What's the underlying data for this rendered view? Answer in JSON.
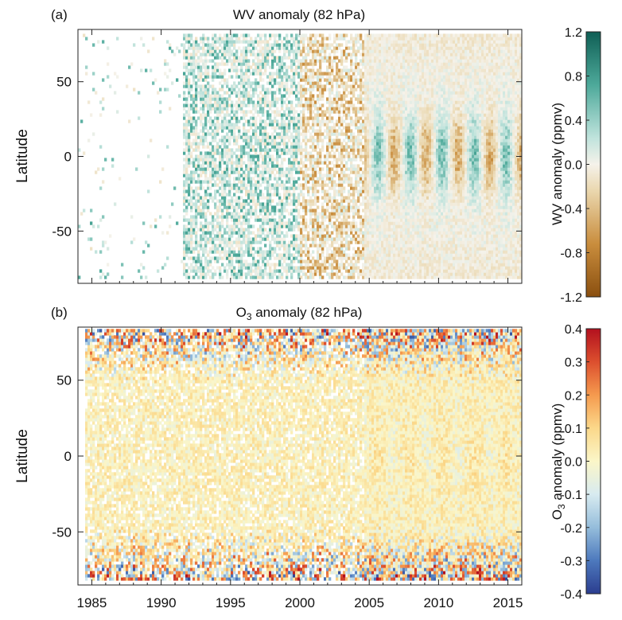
{
  "figure": {
    "panels": [
      {
        "panel_label": "(a)",
        "title": "WV anomaly (82 hPa)",
        "ylabel": "Latitude",
        "colorbar_label": "WV anomaly (ppmv)"
      },
      {
        "panel_label": "(b)",
        "title_main": "O",
        "title_sub": "3",
        "title_rest": " anomaly (82 hPa)",
        "ylabel": "Latitude",
        "colorbar_label_main": "O",
        "colorbar_label_sub": "3",
        "colorbar_label_rest": " anomaly (ppmv)"
      }
    ]
  },
  "chart_data": [
    {
      "type": "heatmap",
      "title": "WV anomaly (82 hPa)",
      "xlabel": "",
      "ylabel": "Latitude",
      "xlim": [
        1984,
        2016
      ],
      "ylim": [
        -85,
        85
      ],
      "xticks": [
        1985,
        1990,
        1995,
        2000,
        2005,
        2010,
        2015
      ],
      "yticks": [
        -50,
        0,
        50
      ],
      "colorbar": {
        "label": "WV anomaly (ppmv)",
        "range": [
          -1.2,
          1.2
        ],
        "ticks": [
          "-1.2",
          "-0.8",
          "-0.4",
          "0.0",
          "0.4",
          "0.8",
          "1.2"
        ],
        "colormap": "brown-white-teal (BrBG)",
        "low_color": "#8a4f0f",
        "mid_color": "#f5f2ea",
        "high_color": "#0f5f55"
      },
      "data_segments": [
        {
          "years": [
            1984,
            1991.5
          ],
          "coverage": "sparse (few scattered records)",
          "anomaly_sign": "mostly positive"
        },
        {
          "years": [
            1991.5,
            2000
          ],
          "coverage": "partial",
          "anomaly_sign": "mostly positive"
        },
        {
          "years": [
            2000,
            2004.6
          ],
          "coverage": "partial",
          "anomaly_sign": "mostly negative"
        },
        {
          "years": [
            2004.6,
            2016
          ],
          "coverage": "full -82 to 82",
          "anomaly_sign": "alternating, strong negative tropical bands"
        }
      ]
    },
    {
      "type": "heatmap",
      "title": "O3 anomaly (82 hPa)",
      "xlabel": "",
      "ylabel": "Latitude",
      "xlim": [
        1984,
        2016
      ],
      "ylim": [
        -85,
        85
      ],
      "xticks": [
        1985,
        1990,
        1995,
        2000,
        2005,
        2010,
        2015
      ],
      "yticks": [
        -50,
        0,
        50
      ],
      "colorbar": {
        "label": "O3 anomaly (ppmv)",
        "range": [
          -0.4,
          0.4
        ],
        "ticks": [
          "-0.4",
          "-0.3",
          "-0.2",
          "-0.1",
          "0.0",
          "0.1",
          "0.2",
          "0.3",
          "0.4"
        ],
        "colormap": "blue-white-red (RdYlBu reversed)",
        "low_color": "#2b3d8f",
        "mid_color": "#fbf6c8",
        "high_color": "#b2101e"
      },
      "data_segments": [
        {
          "years": [
            1984.5,
            1991.5
          ],
          "coverage": "partial",
          "anomaly_sign": "mixed"
        },
        {
          "years": [
            1991.5,
            2004.6
          ],
          "coverage": "partial",
          "anomaly_sign": "mixed, strong in polar regions"
        },
        {
          "years": [
            2004.6,
            2016
          ],
          "coverage": "full -82 to 82",
          "anomaly_sign": "alternating, strong in polar regions"
        }
      ]
    }
  ]
}
